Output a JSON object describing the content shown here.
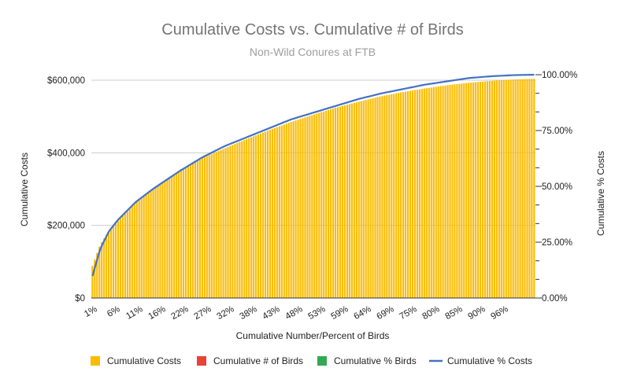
{
  "chart_data": {
    "type": "bar",
    "title": "Cumulative Costs vs. Cumulative # of Birds",
    "subtitle": "Non-Wild Conures at FTB",
    "xlabel": "Cumulative Number/Percent of Birds",
    "ylabel": "Cumulative Costs",
    "y2label": "Cumulative % Costs",
    "ylim": [
      0,
      600000
    ],
    "y2lim": [
      0,
      1
    ],
    "yticks": [
      "$0",
      "$200,000",
      "$400,000",
      "$600,000"
    ],
    "y2ticks": [
      "0.00%",
      "25.00%",
      "50.00%",
      "75.00%",
      "100.00%"
    ],
    "x_tick_labels": [
      "1%",
      "6%",
      "11%",
      "16%",
      "22%",
      "27%",
      "32%",
      "38%",
      "43%",
      "48%",
      "53%",
      "59%",
      "64%",
      "69%",
      "75%",
      "80%",
      "85%",
      "90%",
      "96%"
    ],
    "grid": true,
    "legend_position": "bottom",
    "n_categories": 190,
    "colors": {
      "cumulative_costs": "#fbbc04",
      "cumulative_birds": "#ea4335",
      "cumulative_pct_birds": "#34a853",
      "cumulative_pct_costs": "#4472c4"
    },
    "series": [
      {
        "name": "Cumulative Costs",
        "kind": "bar",
        "axis": "left",
        "color": "#fbbc04",
        "anchors_x_pct": [
          0,
          2,
          4,
          6,
          8,
          10,
          14,
          20,
          25,
          30,
          35,
          40,
          45,
          50,
          55,
          60,
          65,
          70,
          75,
          80,
          85,
          90,
          95,
          100
        ],
        "anchors_y": [
          80000,
          147000,
          185000,
          212000,
          237000,
          262000,
          300000,
          353000,
          385000,
          412000,
          438000,
          462000,
          485000,
          505000,
          524000,
          540000,
          555000,
          567000,
          577000,
          586000,
          593000,
          598000,
          602000,
          604000
        ]
      },
      {
        "name": "Cumulative # of Birds",
        "kind": "bar",
        "axis": "left",
        "color": "#ea4335",
        "values_range": [
          1,
          190
        ]
      },
      {
        "name": "Cumulative % Birds",
        "kind": "bar",
        "axis": "left",
        "color": "#34a853",
        "values_range": [
          0.005,
          1
        ]
      },
      {
        "name": "Cumulative % Costs",
        "kind": "line",
        "axis": "right",
        "color": "#4472c4",
        "anchors_x_pct": [
          0,
          2,
          4,
          6,
          8,
          10,
          14,
          20,
          25,
          30,
          35,
          40,
          45,
          50,
          55,
          60,
          65,
          70,
          75,
          80,
          85,
          90,
          95,
          100
        ],
        "anchors_y": [
          0.08,
          0.22,
          0.3,
          0.35,
          0.39,
          0.43,
          0.49,
          0.57,
          0.63,
          0.68,
          0.72,
          0.76,
          0.8,
          0.83,
          0.86,
          0.89,
          0.915,
          0.935,
          0.955,
          0.97,
          0.985,
          0.993,
          0.998,
          1.0
        ]
      }
    ]
  }
}
